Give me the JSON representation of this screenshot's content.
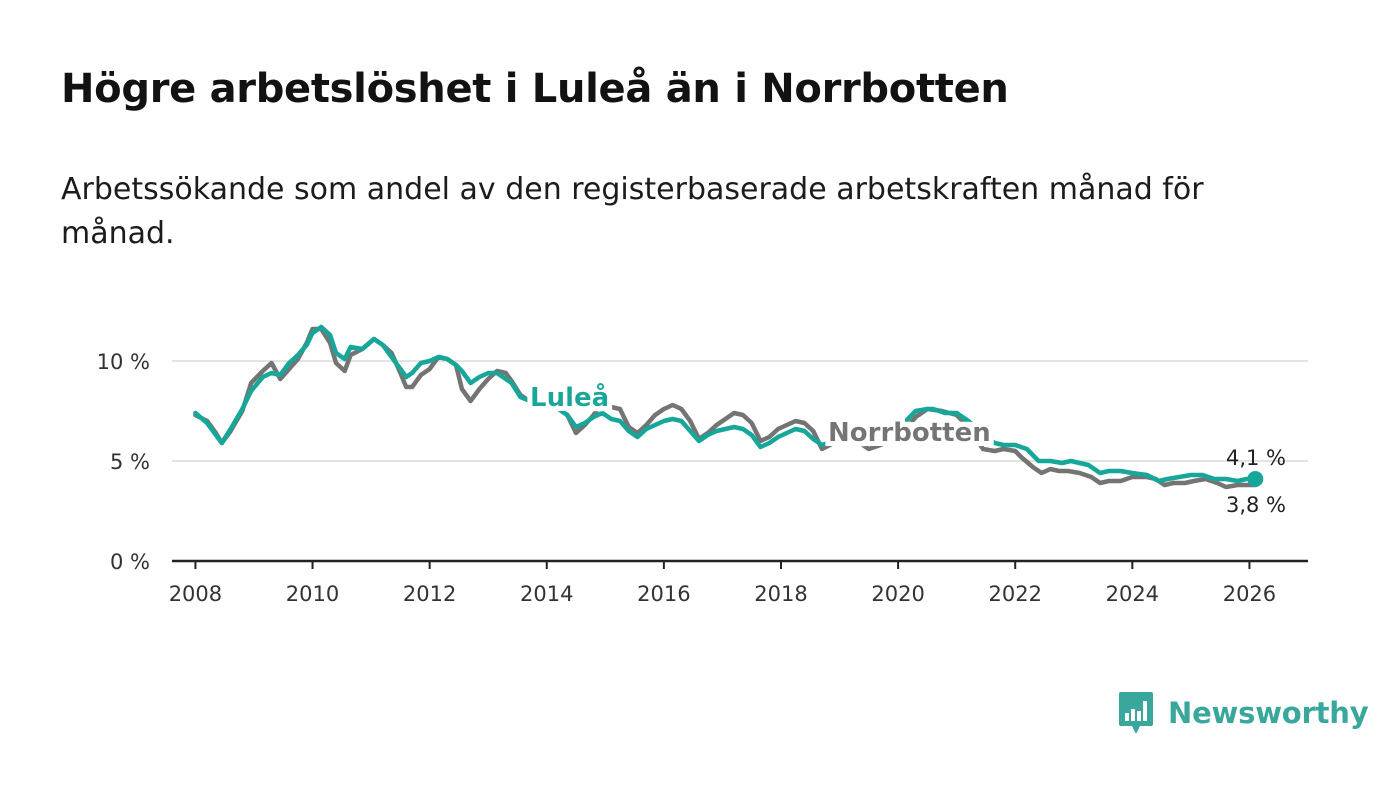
{
  "title": "Högre arbetslöshet i Luleå än i Norrbotten",
  "subtitle": "Arbetssökande som andel av den registerbaserade arbetskraften månad för månad.",
  "brand": {
    "name": "Newsworthy",
    "icon": "bar-chart-speech-bubble-icon",
    "color": "#3aa79c"
  },
  "chart_data": {
    "type": "line",
    "title": "Högre arbetslöshet i Luleå än i Norrbotten",
    "xlabel": "",
    "ylabel": "",
    "xlim": [
      2007.6,
      2027.0
    ],
    "ylim": [
      0,
      12
    ],
    "y_ticks": [
      0,
      5,
      10
    ],
    "y_tick_labels": [
      "0 %",
      "5 %",
      "10 %"
    ],
    "x_ticks": [
      2008,
      2010,
      2012,
      2014,
      2016,
      2018,
      2020,
      2022,
      2024,
      2026
    ],
    "x_tick_labels": [
      "2008",
      "2010",
      "2012",
      "2014",
      "2016",
      "2018",
      "2020",
      "2022",
      "2024",
      "2026"
    ],
    "grid": true,
    "series": [
      {
        "name": "Norrbotten",
        "color": "#747474",
        "label": "Norrbotten",
        "end_label": "3,8 %",
        "points": [
          [
            2008.0,
            7.3
          ],
          [
            2008.2,
            7.0
          ],
          [
            2008.35,
            6.4
          ],
          [
            2008.45,
            5.9
          ],
          [
            2008.6,
            6.5
          ],
          [
            2008.8,
            7.5
          ],
          [
            2008.95,
            8.9
          ],
          [
            2009.15,
            9.5
          ],
          [
            2009.3,
            9.9
          ],
          [
            2009.45,
            9.1
          ],
          [
            2009.6,
            9.6
          ],
          [
            2009.75,
            10.1
          ],
          [
            2009.9,
            10.9
          ],
          [
            2010.0,
            11.6
          ],
          [
            2010.15,
            11.6
          ],
          [
            2010.3,
            10.9
          ],
          [
            2010.4,
            9.9
          ],
          [
            2010.55,
            9.5
          ],
          [
            2010.65,
            10.3
          ],
          [
            2010.85,
            10.6
          ],
          [
            2011.05,
            11.1
          ],
          [
            2011.2,
            10.8
          ],
          [
            2011.35,
            10.4
          ],
          [
            2011.5,
            9.4
          ],
          [
            2011.6,
            8.7
          ],
          [
            2011.7,
            8.7
          ],
          [
            2011.85,
            9.3
          ],
          [
            2012.0,
            9.6
          ],
          [
            2012.15,
            10.2
          ],
          [
            2012.3,
            10.1
          ],
          [
            2012.45,
            9.8
          ],
          [
            2012.55,
            8.6
          ],
          [
            2012.7,
            8.0
          ],
          [
            2012.85,
            8.6
          ],
          [
            2013.0,
            9.1
          ],
          [
            2013.15,
            9.5
          ],
          [
            2013.3,
            9.4
          ],
          [
            2013.4,
            9.0
          ],
          [
            2013.55,
            8.3
          ],
          [
            2013.75,
            7.9
          ],
          [
            2014.0,
            7.8
          ],
          [
            2014.2,
            7.6
          ],
          [
            2014.35,
            7.3
          ],
          [
            2014.5,
            6.4
          ],
          [
            2014.65,
            6.8
          ],
          [
            2014.8,
            7.3
          ],
          [
            2014.95,
            7.9
          ],
          [
            2015.1,
            7.7
          ],
          [
            2015.25,
            7.6
          ],
          [
            2015.4,
            6.7
          ],
          [
            2015.55,
            6.4
          ],
          [
            2015.7,
            6.8
          ],
          [
            2015.85,
            7.3
          ],
          [
            2016.0,
            7.6
          ],
          [
            2016.15,
            7.8
          ],
          [
            2016.3,
            7.6
          ],
          [
            2016.45,
            7.0
          ],
          [
            2016.6,
            6.1
          ],
          [
            2016.75,
            6.4
          ],
          [
            2016.9,
            6.8
          ],
          [
            2017.05,
            7.1
          ],
          [
            2017.2,
            7.4
          ],
          [
            2017.35,
            7.3
          ],
          [
            2017.5,
            6.9
          ],
          [
            2017.65,
            6.0
          ],
          [
            2017.8,
            6.2
          ],
          [
            2017.95,
            6.6
          ],
          [
            2018.1,
            6.8
          ],
          [
            2018.25,
            7.0
          ],
          [
            2018.4,
            6.9
          ],
          [
            2018.55,
            6.5
          ],
          [
            2018.7,
            5.6
          ],
          [
            2018.9,
            5.9
          ],
          [
            2019.1,
            6.2
          ],
          [
            2019.3,
            6.0
          ],
          [
            2019.5,
            5.6
          ],
          [
            2019.7,
            5.8
          ],
          [
            2019.9,
            6.1
          ],
          [
            2020.1,
            6.5
          ],
          [
            2020.3,
            7.2
          ],
          [
            2020.5,
            7.6
          ],
          [
            2020.75,
            7.5
          ],
          [
            2021.0,
            7.3
          ],
          [
            2021.2,
            6.7
          ],
          [
            2021.45,
            5.6
          ],
          [
            2021.65,
            5.5
          ],
          [
            2021.8,
            5.6
          ],
          [
            2022.0,
            5.5
          ],
          [
            2022.1,
            5.2
          ],
          [
            2022.3,
            4.7
          ],
          [
            2022.45,
            4.4
          ],
          [
            2022.6,
            4.6
          ],
          [
            2022.75,
            4.5
          ],
          [
            2022.9,
            4.5
          ],
          [
            2023.1,
            4.4
          ],
          [
            2023.3,
            4.2
          ],
          [
            2023.45,
            3.9
          ],
          [
            2023.6,
            4.0
          ],
          [
            2023.8,
            4.0
          ],
          [
            2024.0,
            4.2
          ],
          [
            2024.25,
            4.2
          ],
          [
            2024.4,
            4.1
          ],
          [
            2024.55,
            3.8
          ],
          [
            2024.7,
            3.9
          ],
          [
            2024.9,
            3.9
          ],
          [
            2025.05,
            4.0
          ],
          [
            2025.25,
            4.1
          ],
          [
            2025.45,
            3.9
          ],
          [
            2025.6,
            3.7
          ],
          [
            2025.8,
            3.8
          ],
          [
            2025.95,
            3.8
          ],
          [
            2026.1,
            3.8
          ]
        ]
      },
      {
        "name": "Luleå",
        "color": "#16a79a",
        "label": "Luleå",
        "end_label": "4,1 %",
        "points": [
          [
            2008.0,
            7.4
          ],
          [
            2008.2,
            6.9
          ],
          [
            2008.35,
            6.3
          ],
          [
            2008.45,
            5.9
          ],
          [
            2008.6,
            6.6
          ],
          [
            2008.8,
            7.6
          ],
          [
            2008.95,
            8.5
          ],
          [
            2009.15,
            9.2
          ],
          [
            2009.3,
            9.4
          ],
          [
            2009.45,
            9.3
          ],
          [
            2009.6,
            9.9
          ],
          [
            2009.75,
            10.3
          ],
          [
            2009.9,
            10.8
          ],
          [
            2010.0,
            11.4
          ],
          [
            2010.15,
            11.7
          ],
          [
            2010.3,
            11.3
          ],
          [
            2010.4,
            10.4
          ],
          [
            2010.55,
            10.1
          ],
          [
            2010.65,
            10.7
          ],
          [
            2010.85,
            10.6
          ],
          [
            2011.05,
            11.1
          ],
          [
            2011.2,
            10.8
          ],
          [
            2011.35,
            10.2
          ],
          [
            2011.5,
            9.6
          ],
          [
            2011.6,
            9.2
          ],
          [
            2011.7,
            9.4
          ],
          [
            2011.85,
            9.9
          ],
          [
            2012.0,
            10.0
          ],
          [
            2012.15,
            10.2
          ],
          [
            2012.3,
            10.1
          ],
          [
            2012.45,
            9.8
          ],
          [
            2012.55,
            9.5
          ],
          [
            2012.7,
            8.9
          ],
          [
            2012.85,
            9.2
          ],
          [
            2013.0,
            9.4
          ],
          [
            2013.15,
            9.4
          ],
          [
            2013.3,
            9.1
          ],
          [
            2013.4,
            8.9
          ],
          [
            2013.55,
            8.2
          ],
          [
            2013.8,
            7.9
          ],
          [
            2014.0,
            7.8
          ],
          [
            2014.2,
            7.6
          ],
          [
            2014.35,
            7.3
          ],
          [
            2014.5,
            6.7
          ],
          [
            2014.65,
            6.9
          ],
          [
            2014.8,
            7.2
          ],
          [
            2014.95,
            7.4
          ],
          [
            2015.1,
            7.1
          ],
          [
            2015.25,
            7.0
          ],
          [
            2015.4,
            6.5
          ],
          [
            2015.55,
            6.2
          ],
          [
            2015.7,
            6.6
          ],
          [
            2015.85,
            6.8
          ],
          [
            2016.0,
            7.0
          ],
          [
            2016.15,
            7.1
          ],
          [
            2016.3,
            7.0
          ],
          [
            2016.45,
            6.5
          ],
          [
            2016.6,
            6.0
          ],
          [
            2016.75,
            6.3
          ],
          [
            2016.9,
            6.5
          ],
          [
            2017.05,
            6.6
          ],
          [
            2017.2,
            6.7
          ],
          [
            2017.35,
            6.6
          ],
          [
            2017.5,
            6.3
          ],
          [
            2017.65,
            5.7
          ],
          [
            2017.8,
            5.9
          ],
          [
            2017.95,
            6.2
          ],
          [
            2018.1,
            6.4
          ],
          [
            2018.25,
            6.6
          ],
          [
            2018.4,
            6.5
          ],
          [
            2018.55,
            6.1
          ],
          [
            2018.7,
            5.8
          ],
          [
            2018.9,
            6.0
          ],
          [
            2019.1,
            6.1
          ],
          [
            2019.3,
            6.0
          ],
          [
            2019.5,
            5.9
          ],
          [
            2019.7,
            6.1
          ],
          [
            2019.9,
            6.4
          ],
          [
            2020.1,
            6.9
          ],
          [
            2020.3,
            7.5
          ],
          [
            2020.5,
            7.6
          ],
          [
            2020.6,
            7.6
          ],
          [
            2020.8,
            7.4
          ],
          [
            2021.0,
            7.4
          ],
          [
            2021.2,
            7.0
          ],
          [
            2021.45,
            6.3
          ],
          [
            2021.65,
            5.9
          ],
          [
            2021.8,
            5.8
          ],
          [
            2022.0,
            5.8
          ],
          [
            2022.2,
            5.6
          ],
          [
            2022.4,
            5.0
          ],
          [
            2022.6,
            5.0
          ],
          [
            2022.8,
            4.9
          ],
          [
            2022.95,
            5.0
          ],
          [
            2023.1,
            4.9
          ],
          [
            2023.25,
            4.8
          ],
          [
            2023.45,
            4.4
          ],
          [
            2023.6,
            4.5
          ],
          [
            2023.8,
            4.5
          ],
          [
            2024.0,
            4.4
          ],
          [
            2024.25,
            4.3
          ],
          [
            2024.45,
            4.0
          ],
          [
            2024.6,
            4.1
          ],
          [
            2024.8,
            4.2
          ],
          [
            2025.0,
            4.3
          ],
          [
            2025.2,
            4.3
          ],
          [
            2025.4,
            4.1
          ],
          [
            2025.6,
            4.1
          ],
          [
            2025.8,
            4.0
          ],
          [
            2025.95,
            4.1
          ],
          [
            2026.1,
            4.1
          ]
        ]
      }
    ]
  }
}
